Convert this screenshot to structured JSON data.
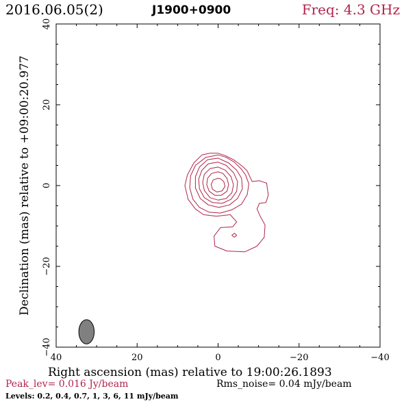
{
  "header": {
    "date": "2016.06.05(2)",
    "source": "J1900+0900",
    "freq": "Freq: 4.3 GHz"
  },
  "footer": {
    "peak": "Peak_lev=  0.016 Jy/beam",
    "rms": "Rms_noise= 0.04 mJy/beam",
    "levels": "Levels: 0.2, 0.4, 0.7,   1,   3,   6,  11 mJy/beam"
  },
  "colors": {
    "contour": "#b0244a",
    "beam": "#808080",
    "axes": "#000000"
  },
  "chart_data": {
    "type": "contour",
    "title": "J1900+0900",
    "xlabel": "Right ascension (mas) relative to 19:00:26.1893",
    "ylabel": "Declination (mas) relative to +09:00:20.977",
    "xlim": [
      40,
      -40
    ],
    "ylim": [
      -40,
      40
    ],
    "xticks": [
      40,
      20,
      0,
      -20,
      -40
    ],
    "yticks": [
      -40,
      -20,
      0,
      20,
      40
    ],
    "xtick_labels": [
      "40",
      "20",
      "0",
      "−20",
      "−40"
    ],
    "ytick_labels": [
      "−40",
      "−20",
      "0",
      "20",
      "40"
    ],
    "levels_mJy_per_beam": [
      0.2,
      0.4,
      0.7,
      1,
      3,
      6,
      11
    ],
    "peak_Jy_per_beam": 0.016,
    "rms_mJy_per_beam": 0.04,
    "beam": {
      "x": 32.5,
      "y": -36.2,
      "major": 6.0,
      "minor": 3.8,
      "pa_deg": 0
    },
    "contours": [
      {
        "level": 0.2,
        "points": [
          [
            0,
            8
          ],
          [
            2,
            8
          ],
          [
            4,
            7.6
          ],
          [
            6,
            5.6
          ],
          [
            7.6,
            2.6
          ],
          [
            8.2,
            0
          ],
          [
            7.4,
            -3.4
          ],
          [
            5.6,
            -5.8
          ],
          [
            3.6,
            -7.2
          ],
          [
            0.4,
            -7.6
          ],
          [
            -3,
            -7.2
          ],
          [
            -4.6,
            -9
          ],
          [
            -3.6,
            -10.2
          ],
          [
            -0.6,
            -10.4
          ],
          [
            1,
            -12.5
          ],
          [
            0.8,
            -15
          ],
          [
            -2.2,
            -16.2
          ],
          [
            -6.6,
            -16.4
          ],
          [
            -9.6,
            -15
          ],
          [
            -11.4,
            -12.8
          ],
          [
            -11.6,
            -9.8
          ],
          [
            -10.4,
            -7.6
          ],
          [
            -9.6,
            -5.8
          ],
          [
            -10.2,
            -4.4
          ],
          [
            -11.8,
            -4.2
          ],
          [
            -12.4,
            -2.4
          ],
          [
            -12,
            0.6
          ],
          [
            -10.2,
            1.2
          ],
          [
            -8.4,
            1
          ],
          [
            -7.2,
            3.6
          ],
          [
            -6.2,
            4.6
          ],
          [
            -5.2,
            5.4
          ],
          [
            -3.8,
            6.4
          ],
          [
            -1.8,
            7.4
          ]
        ]
      },
      {
        "level": 0.4,
        "points": [
          [
            0,
            7.6
          ],
          [
            3,
            7
          ],
          [
            5.6,
            5
          ],
          [
            6.8,
            2.4
          ],
          [
            7,
            -0.6
          ],
          [
            6.2,
            -3.4
          ],
          [
            4.6,
            -5.4
          ],
          [
            2.2,
            -6.6
          ],
          [
            -0.6,
            -6.8
          ],
          [
            -3.4,
            -6
          ],
          [
            -5.8,
            -4.6
          ],
          [
            -7.2,
            -2.2
          ],
          [
            -7.6,
            0.4
          ],
          [
            -6.8,
            2.6
          ],
          [
            -5.8,
            4
          ],
          [
            -4,
            5.8
          ],
          [
            -2,
            7
          ]
        ]
      },
      {
        "level": 0.7,
        "points": [
          [
            0,
            6.8
          ],
          [
            2.6,
            6.4
          ],
          [
            4.6,
            4.6
          ],
          [
            5.6,
            2.2
          ],
          [
            5.6,
            -0.6
          ],
          [
            4.4,
            -3.2
          ],
          [
            2.4,
            -4.8
          ],
          [
            -0.2,
            -5.4
          ],
          [
            -2.8,
            -4.8
          ],
          [
            -4.8,
            -3.2
          ],
          [
            -6,
            -0.8
          ],
          [
            -5.8,
            1.8
          ],
          [
            -4.6,
            3.8
          ],
          [
            -2.6,
            5.6
          ]
        ]
      },
      {
        "level": 1,
        "points": [
          [
            0,
            5.8
          ],
          [
            2.4,
            5.4
          ],
          [
            4,
            3.8
          ],
          [
            4.8,
            1.6
          ],
          [
            4.6,
            -0.8
          ],
          [
            3.4,
            -3
          ],
          [
            1.4,
            -4.2
          ],
          [
            -1,
            -4.4
          ],
          [
            -3.2,
            -3.4
          ],
          [
            -4.6,
            -1.4
          ],
          [
            -4.8,
            1
          ],
          [
            -3.8,
            3.2
          ],
          [
            -2,
            5
          ]
        ]
      },
      {
        "level": 3,
        "points": [
          [
            0,
            4.6
          ],
          [
            2,
            4.2
          ],
          [
            3.4,
            2.8
          ],
          [
            3.8,
            0.8
          ],
          [
            3.4,
            -1.2
          ],
          [
            2,
            -3
          ],
          [
            0,
            -3.6
          ],
          [
            -2,
            -3.2
          ],
          [
            -3.4,
            -1.8
          ],
          [
            -3.8,
            0.2
          ],
          [
            -3.2,
            2.2
          ],
          [
            -1.8,
            3.8
          ]
        ]
      },
      {
        "level": 6,
        "points": [
          [
            0,
            3.4
          ],
          [
            1.6,
            3
          ],
          [
            2.6,
            1.8
          ],
          [
            2.8,
            0.2
          ],
          [
            2.2,
            -1.4
          ],
          [
            0.8,
            -2.4
          ],
          [
            -0.8,
            -2.4
          ],
          [
            -2.2,
            -1.4
          ],
          [
            -2.6,
            0.2
          ],
          [
            -2.2,
            1.8
          ],
          [
            -1.2,
            3
          ]
        ]
      },
      {
        "level": 11,
        "points": [
          [
            0,
            1.8
          ],
          [
            1.2,
            1.4
          ],
          [
            1.7,
            0.3
          ],
          [
            1.4,
            -0.9
          ],
          [
            0.3,
            -1.6
          ],
          [
            -1,
            -1.3
          ],
          [
            -1.7,
            -0.2
          ],
          [
            -1.4,
            1
          ],
          [
            -0.6,
            1.7
          ]
        ]
      },
      {
        "level": 0.2,
        "points": [
          [
            -4,
            -11.8
          ],
          [
            -4.6,
            -12.3
          ],
          [
            -4,
            -12.8
          ],
          [
            -3.4,
            -12.3
          ]
        ]
      }
    ]
  }
}
